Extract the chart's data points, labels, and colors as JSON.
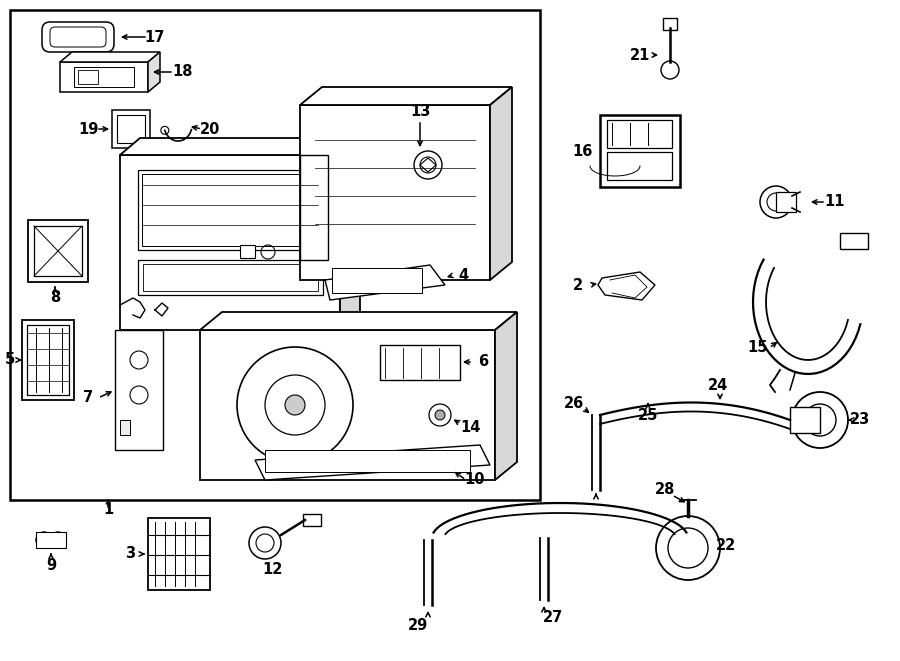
{
  "bg_color": "#ffffff",
  "line_color": "#000000",
  "fig_width": 9.0,
  "fig_height": 6.61,
  "dpi": 100,
  "fs": 10.5
}
